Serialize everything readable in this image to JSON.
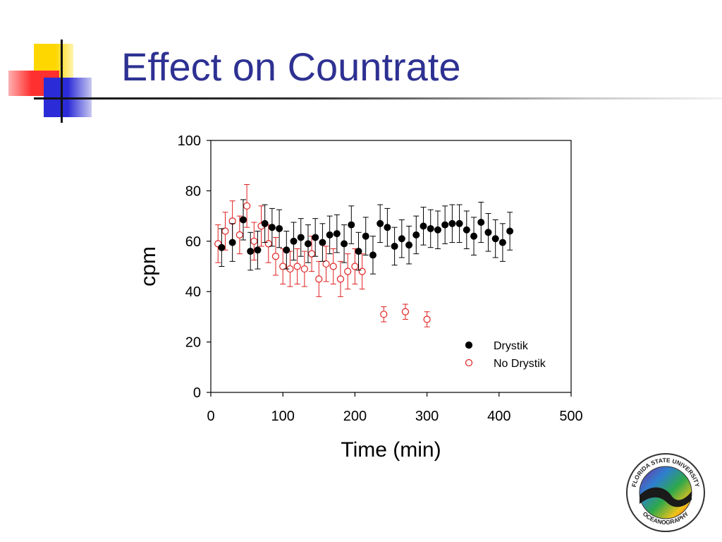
{
  "slide": {
    "title": "Effect on Countrate",
    "colors": {
      "title": "#2E3192",
      "accent_yellow": "#FFD700",
      "accent_red": "#FF3030",
      "accent_blue": "#2B2BD8"
    }
  },
  "logo": {
    "text_top": "FLORIDA STATE UNIVERSITY",
    "text_bottom": "OCEANOGRAPHY"
  },
  "chart_data": {
    "type": "scatter",
    "title": "",
    "xlabel": "Time (min)",
    "ylabel": "cpm",
    "xlim": [
      0,
      500
    ],
    "ylim": [
      0,
      100
    ],
    "xticks": [
      0,
      100,
      200,
      300,
      400,
      500
    ],
    "yticks": [
      0,
      20,
      40,
      60,
      80,
      100
    ],
    "grid": false,
    "legend_position": "bottom-right",
    "series": [
      {
        "name": "Drystik",
        "marker": "filled-circle",
        "color": "#000000",
        "points": [
          {
            "x": 15,
            "y": 57.5,
            "err": 7.5
          },
          {
            "x": 30,
            "y": 59.5,
            "err": 7.5
          },
          {
            "x": 45,
            "y": 68.5,
            "err": 8
          },
          {
            "x": 55,
            "y": 56,
            "err": 7.5
          },
          {
            "x": 65,
            "y": 56.5,
            "err": 7.5
          },
          {
            "x": 75,
            "y": 67,
            "err": 7.5
          },
          {
            "x": 85,
            "y": 65.5,
            "err": 7.5
          },
          {
            "x": 95,
            "y": 65,
            "err": 7.5
          },
          {
            "x": 105,
            "y": 56.5,
            "err": 7.5
          },
          {
            "x": 115,
            "y": 60,
            "err": 7.5
          },
          {
            "x": 125,
            "y": 61.5,
            "err": 7.5
          },
          {
            "x": 135,
            "y": 59,
            "err": 7.5
          },
          {
            "x": 145,
            "y": 61.5,
            "err": 7.5
          },
          {
            "x": 155,
            "y": 59.5,
            "err": 7.5
          },
          {
            "x": 165,
            "y": 62.5,
            "err": 7.5
          },
          {
            "x": 175,
            "y": 63,
            "err": 7.5
          },
          {
            "x": 185,
            "y": 59,
            "err": 7.5
          },
          {
            "x": 195,
            "y": 66.5,
            "err": 7.5
          },
          {
            "x": 205,
            "y": 56,
            "err": 7.5
          },
          {
            "x": 215,
            "y": 62,
            "err": 7.5
          },
          {
            "x": 225,
            "y": 54.5,
            "err": 7.5
          },
          {
            "x": 235,
            "y": 67,
            "err": 7.5
          },
          {
            "x": 245,
            "y": 65.5,
            "err": 7.5
          },
          {
            "x": 255,
            "y": 58,
            "err": 7.5
          },
          {
            "x": 265,
            "y": 61,
            "err": 7.5
          },
          {
            "x": 275,
            "y": 58.5,
            "err": 7.5
          },
          {
            "x": 285,
            "y": 62.5,
            "err": 7.5
          },
          {
            "x": 295,
            "y": 66,
            "err": 7.5
          },
          {
            "x": 305,
            "y": 65,
            "err": 7.5
          },
          {
            "x": 315,
            "y": 64.5,
            "err": 7.5
          },
          {
            "x": 325,
            "y": 66.5,
            "err": 7.5
          },
          {
            "x": 335,
            "y": 67,
            "err": 7.5
          },
          {
            "x": 345,
            "y": 67,
            "err": 7.5
          },
          {
            "x": 355,
            "y": 64.5,
            "err": 7.5
          },
          {
            "x": 365,
            "y": 62,
            "err": 7.5
          },
          {
            "x": 375,
            "y": 67.5,
            "err": 8
          },
          {
            "x": 385,
            "y": 63.5,
            "err": 7.5
          },
          {
            "x": 395,
            "y": 61,
            "err": 7.5
          },
          {
            "x": 405,
            "y": 59.5,
            "err": 7.5
          },
          {
            "x": 415,
            "y": 64,
            "err": 7.5
          }
        ]
      },
      {
        "name": "No Drystik",
        "marker": "open-circle",
        "color": "#E02020",
        "points": [
          {
            "x": 10,
            "y": 59,
            "err": 7.5
          },
          {
            "x": 20,
            "y": 64,
            "err": 7.5
          },
          {
            "x": 30,
            "y": 68,
            "err": 8
          },
          {
            "x": 40,
            "y": 62.5,
            "err": 7.5
          },
          {
            "x": 50,
            "y": 74,
            "err": 8.5
          },
          {
            "x": 60,
            "y": 60,
            "err": 7.5
          },
          {
            "x": 70,
            "y": 66,
            "err": 8
          },
          {
            "x": 80,
            "y": 59,
            "err": 7.5
          },
          {
            "x": 90,
            "y": 54,
            "err": 7.5
          },
          {
            "x": 100,
            "y": 50,
            "err": 7
          },
          {
            "x": 110,
            "y": 49,
            "err": 7
          },
          {
            "x": 120,
            "y": 50,
            "err": 7
          },
          {
            "x": 130,
            "y": 49,
            "err": 7
          },
          {
            "x": 140,
            "y": 55,
            "err": 7
          },
          {
            "x": 150,
            "y": 45,
            "err": 7
          },
          {
            "x": 160,
            "y": 51,
            "err": 7
          },
          {
            "x": 170,
            "y": 50,
            "err": 7
          },
          {
            "x": 180,
            "y": 45,
            "err": 7
          },
          {
            "x": 190,
            "y": 48,
            "err": 7
          },
          {
            "x": 200,
            "y": 50,
            "err": 7
          },
          {
            "x": 210,
            "y": 48,
            "err": 7
          },
          {
            "x": 240,
            "y": 31,
            "err": 3
          },
          {
            "x": 270,
            "y": 32,
            "err": 3
          },
          {
            "x": 300,
            "y": 29,
            "err": 3
          }
        ]
      }
    ]
  }
}
